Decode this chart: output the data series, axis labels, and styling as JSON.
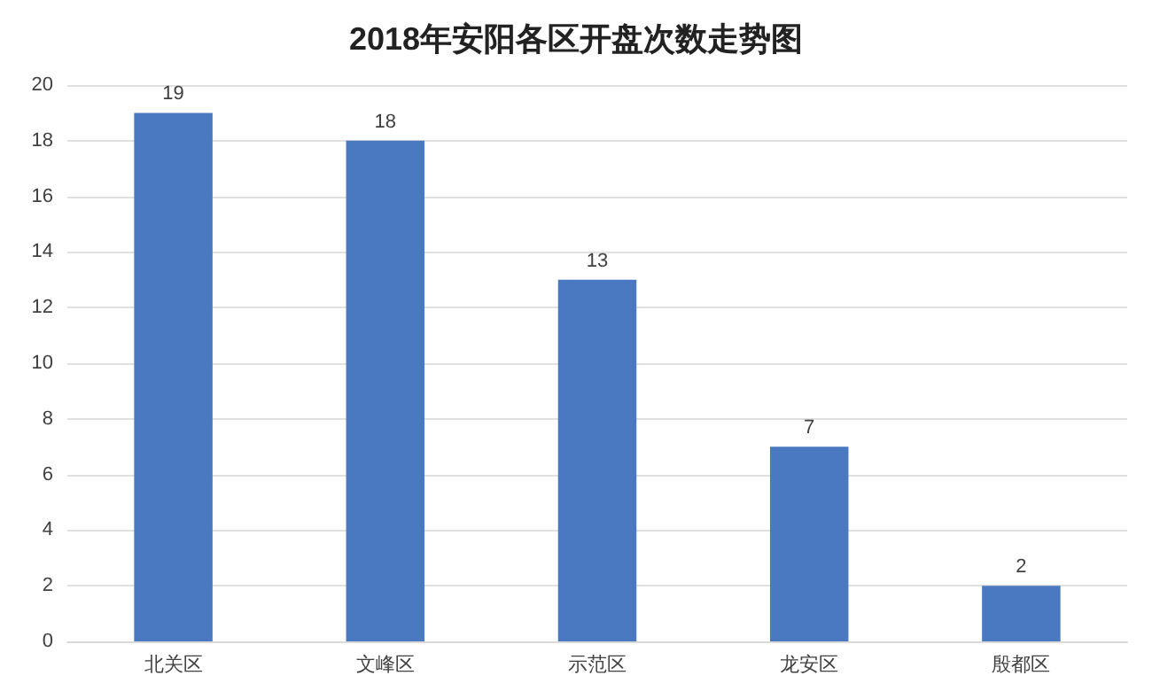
{
  "chart_data": {
    "type": "bar",
    "title": "2018年安阳各区开盘次数走势图",
    "categories": [
      "北关区",
      "文峰区",
      "示范区",
      "龙安区",
      "殷都区"
    ],
    "values": [
      19,
      18,
      13,
      7,
      2
    ],
    "color": "#4a78c1",
    "ylim": [
      0,
      20
    ],
    "yticks": [
      0,
      2,
      4,
      6,
      8,
      10,
      12,
      14,
      16,
      18,
      20
    ],
    "grid": "y",
    "data_labels": true
  }
}
